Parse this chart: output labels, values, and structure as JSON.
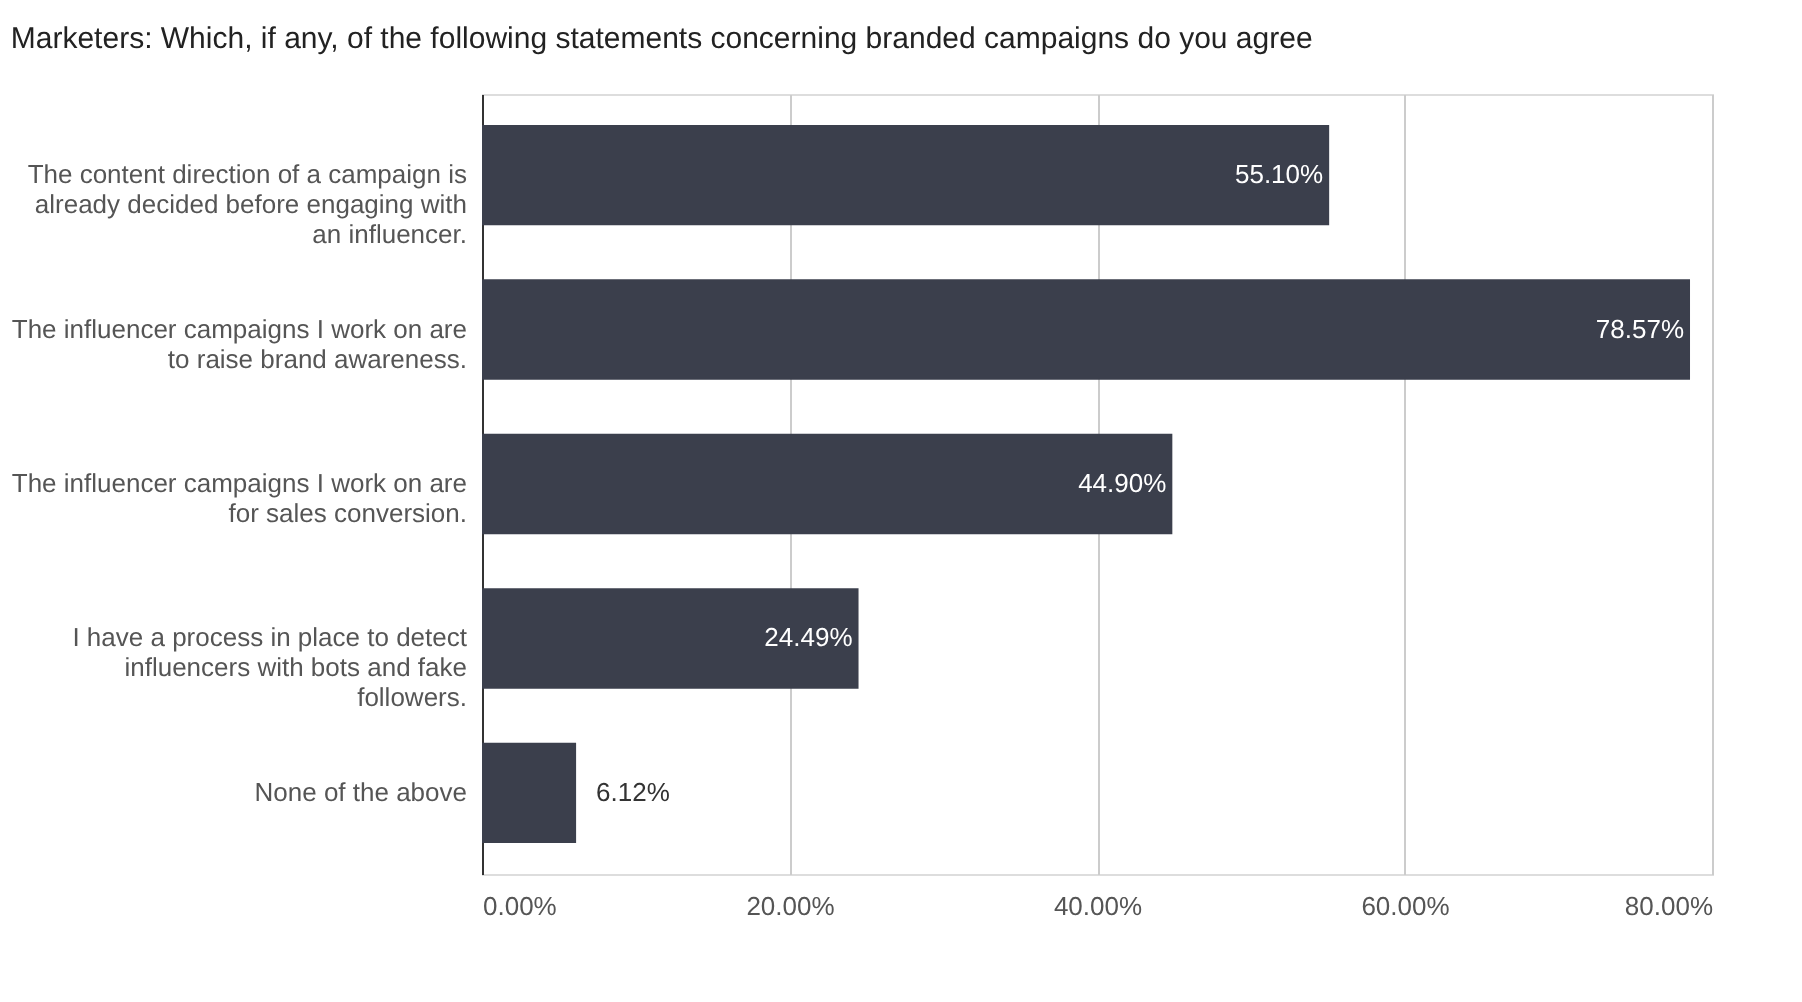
{
  "chart_data": {
    "type": "bar",
    "orientation": "horizontal",
    "title": "Marketers: Which, if any, of the following statements concerning branded campaigns do you agree",
    "categories": [
      "The content direction of a campaign is already decided before engaging with an influencer.",
      "The influencer campaigns I work on are to raise brand awareness.",
      "The influencer campaigns I work on are for sales conversion.",
      "I have a process in place to detect influencers with bots and fake followers.",
      "None of the above"
    ],
    "values": [
      55.1,
      78.57,
      44.9,
      24.49,
      6.12
    ],
    "value_labels": [
      "55.10%",
      "78.57%",
      "44.90%",
      "24.49%",
      "6.12%"
    ],
    "color": "#3b3f4c",
    "xlim": [
      0,
      80
    ],
    "xticks": [
      {
        "value": 0,
        "label": "0.00%"
      },
      {
        "value": 20,
        "label": "20.00%"
      },
      {
        "value": 40,
        "label": "40.00%"
      },
      {
        "value": 60,
        "label": "60.00%"
      },
      {
        "value": 80,
        "label": "80.00%"
      }
    ],
    "grid": "x"
  }
}
